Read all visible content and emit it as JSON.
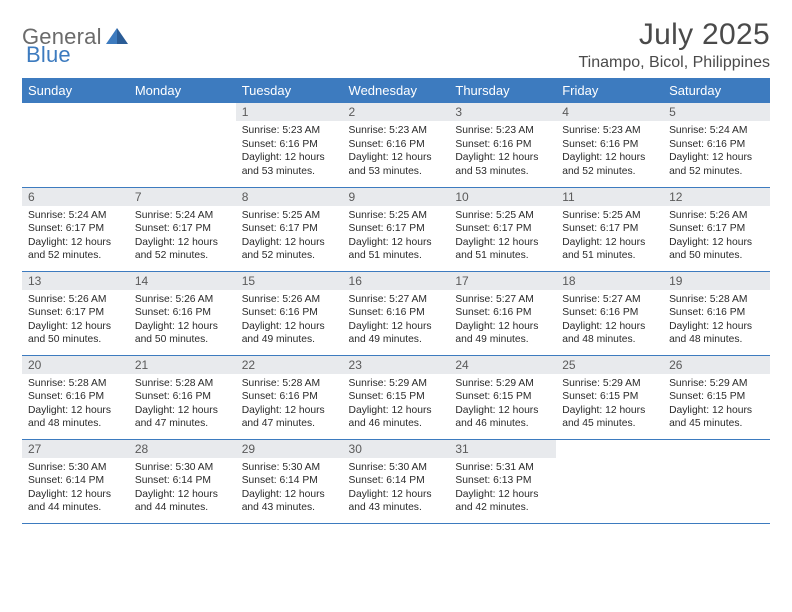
{
  "logo": {
    "general": "General",
    "blue": "Blue"
  },
  "title": "July 2025",
  "location": "Tinampo, Bicol, Philippines",
  "colors": {
    "accent": "#3d7bbf",
    "header_bg": "#3d7bbf",
    "header_text": "#ffffff",
    "daynum_bg": "#e8eaed",
    "daynum_text": "#5a5a5a",
    "body_text": "#2a2a2a",
    "title_text": "#4a4a4a",
    "border": "#3d7bbf",
    "page_bg": "#ffffff"
  },
  "typography": {
    "base_font": "Arial",
    "title_size_pt": 22,
    "location_size_pt": 12,
    "weekday_size_pt": 10,
    "daynum_size_pt": 9,
    "body_size_pt": 8
  },
  "structure": "table",
  "weekdays": [
    "Sunday",
    "Monday",
    "Tuesday",
    "Wednesday",
    "Thursday",
    "Friday",
    "Saturday"
  ],
  "weeks": [
    [
      {
        "blank": true
      },
      {
        "blank": true
      },
      {
        "day": "1",
        "sunrise": "Sunrise: 5:23 AM",
        "sunset": "Sunset: 6:16 PM",
        "daylight": "Daylight: 12 hours and 53 minutes."
      },
      {
        "day": "2",
        "sunrise": "Sunrise: 5:23 AM",
        "sunset": "Sunset: 6:16 PM",
        "daylight": "Daylight: 12 hours and 53 minutes."
      },
      {
        "day": "3",
        "sunrise": "Sunrise: 5:23 AM",
        "sunset": "Sunset: 6:16 PM",
        "daylight": "Daylight: 12 hours and 53 minutes."
      },
      {
        "day": "4",
        "sunrise": "Sunrise: 5:23 AM",
        "sunset": "Sunset: 6:16 PM",
        "daylight": "Daylight: 12 hours and 52 minutes."
      },
      {
        "day": "5",
        "sunrise": "Sunrise: 5:24 AM",
        "sunset": "Sunset: 6:16 PM",
        "daylight": "Daylight: 12 hours and 52 minutes."
      }
    ],
    [
      {
        "day": "6",
        "sunrise": "Sunrise: 5:24 AM",
        "sunset": "Sunset: 6:17 PM",
        "daylight": "Daylight: 12 hours and 52 minutes."
      },
      {
        "day": "7",
        "sunrise": "Sunrise: 5:24 AM",
        "sunset": "Sunset: 6:17 PM",
        "daylight": "Daylight: 12 hours and 52 minutes."
      },
      {
        "day": "8",
        "sunrise": "Sunrise: 5:25 AM",
        "sunset": "Sunset: 6:17 PM",
        "daylight": "Daylight: 12 hours and 52 minutes."
      },
      {
        "day": "9",
        "sunrise": "Sunrise: 5:25 AM",
        "sunset": "Sunset: 6:17 PM",
        "daylight": "Daylight: 12 hours and 51 minutes."
      },
      {
        "day": "10",
        "sunrise": "Sunrise: 5:25 AM",
        "sunset": "Sunset: 6:17 PM",
        "daylight": "Daylight: 12 hours and 51 minutes."
      },
      {
        "day": "11",
        "sunrise": "Sunrise: 5:25 AM",
        "sunset": "Sunset: 6:17 PM",
        "daylight": "Daylight: 12 hours and 51 minutes."
      },
      {
        "day": "12",
        "sunrise": "Sunrise: 5:26 AM",
        "sunset": "Sunset: 6:17 PM",
        "daylight": "Daylight: 12 hours and 50 minutes."
      }
    ],
    [
      {
        "day": "13",
        "sunrise": "Sunrise: 5:26 AM",
        "sunset": "Sunset: 6:17 PM",
        "daylight": "Daylight: 12 hours and 50 minutes."
      },
      {
        "day": "14",
        "sunrise": "Sunrise: 5:26 AM",
        "sunset": "Sunset: 6:16 PM",
        "daylight": "Daylight: 12 hours and 50 minutes."
      },
      {
        "day": "15",
        "sunrise": "Sunrise: 5:26 AM",
        "sunset": "Sunset: 6:16 PM",
        "daylight": "Daylight: 12 hours and 49 minutes."
      },
      {
        "day": "16",
        "sunrise": "Sunrise: 5:27 AM",
        "sunset": "Sunset: 6:16 PM",
        "daylight": "Daylight: 12 hours and 49 minutes."
      },
      {
        "day": "17",
        "sunrise": "Sunrise: 5:27 AM",
        "sunset": "Sunset: 6:16 PM",
        "daylight": "Daylight: 12 hours and 49 minutes."
      },
      {
        "day": "18",
        "sunrise": "Sunrise: 5:27 AM",
        "sunset": "Sunset: 6:16 PM",
        "daylight": "Daylight: 12 hours and 48 minutes."
      },
      {
        "day": "19",
        "sunrise": "Sunrise: 5:28 AM",
        "sunset": "Sunset: 6:16 PM",
        "daylight": "Daylight: 12 hours and 48 minutes."
      }
    ],
    [
      {
        "day": "20",
        "sunrise": "Sunrise: 5:28 AM",
        "sunset": "Sunset: 6:16 PM",
        "daylight": "Daylight: 12 hours and 48 minutes."
      },
      {
        "day": "21",
        "sunrise": "Sunrise: 5:28 AM",
        "sunset": "Sunset: 6:16 PM",
        "daylight": "Daylight: 12 hours and 47 minutes."
      },
      {
        "day": "22",
        "sunrise": "Sunrise: 5:28 AM",
        "sunset": "Sunset: 6:16 PM",
        "daylight": "Daylight: 12 hours and 47 minutes."
      },
      {
        "day": "23",
        "sunrise": "Sunrise: 5:29 AM",
        "sunset": "Sunset: 6:15 PM",
        "daylight": "Daylight: 12 hours and 46 minutes."
      },
      {
        "day": "24",
        "sunrise": "Sunrise: 5:29 AM",
        "sunset": "Sunset: 6:15 PM",
        "daylight": "Daylight: 12 hours and 46 minutes."
      },
      {
        "day": "25",
        "sunrise": "Sunrise: 5:29 AM",
        "sunset": "Sunset: 6:15 PM",
        "daylight": "Daylight: 12 hours and 45 minutes."
      },
      {
        "day": "26",
        "sunrise": "Sunrise: 5:29 AM",
        "sunset": "Sunset: 6:15 PM",
        "daylight": "Daylight: 12 hours and 45 minutes."
      }
    ],
    [
      {
        "day": "27",
        "sunrise": "Sunrise: 5:30 AM",
        "sunset": "Sunset: 6:14 PM",
        "daylight": "Daylight: 12 hours and 44 minutes."
      },
      {
        "day": "28",
        "sunrise": "Sunrise: 5:30 AM",
        "sunset": "Sunset: 6:14 PM",
        "daylight": "Daylight: 12 hours and 44 minutes."
      },
      {
        "day": "29",
        "sunrise": "Sunrise: 5:30 AM",
        "sunset": "Sunset: 6:14 PM",
        "daylight": "Daylight: 12 hours and 43 minutes."
      },
      {
        "day": "30",
        "sunrise": "Sunrise: 5:30 AM",
        "sunset": "Sunset: 6:14 PM",
        "daylight": "Daylight: 12 hours and 43 minutes."
      },
      {
        "day": "31",
        "sunrise": "Sunrise: 5:31 AM",
        "sunset": "Sunset: 6:13 PM",
        "daylight": "Daylight: 12 hours and 42 minutes."
      },
      {
        "blank": true
      },
      {
        "blank": true
      }
    ]
  ]
}
